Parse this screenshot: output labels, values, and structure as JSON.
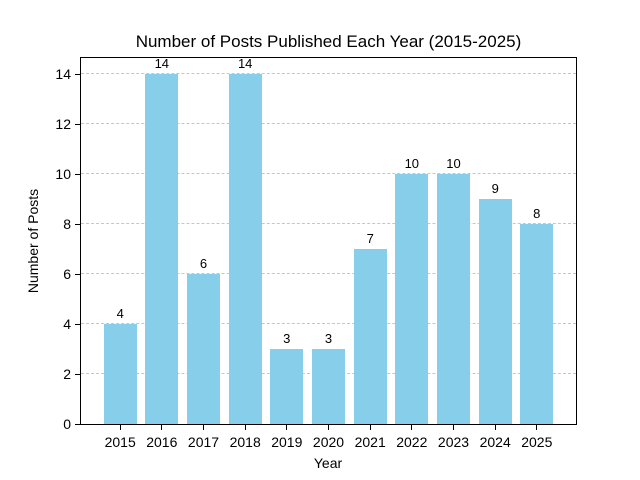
{
  "figure": {
    "background": "#ffffff"
  },
  "chart_data": {
    "type": "bar",
    "title": "Number of Posts Published Each Year (2015-2025)",
    "xlabel": "Year",
    "ylabel": "Number of Posts",
    "categories": [
      "2015",
      "2016",
      "2017",
      "2018",
      "2019",
      "2020",
      "2021",
      "2022",
      "2023",
      "2024",
      "2025"
    ],
    "values": [
      4,
      14,
      6,
      14,
      3,
      3,
      7,
      10,
      10,
      9,
      8
    ],
    "yticks": [
      0,
      2,
      4,
      6,
      8,
      10,
      12,
      14
    ],
    "ylim": [
      0,
      14.65
    ],
    "bar_color": "#87CEEB",
    "grid": {
      "axis": "y",
      "style": "dashed",
      "color": "#c6c6c6"
    },
    "spine_color": "#000000",
    "text_color": "#000000",
    "legend_position": "none"
  }
}
